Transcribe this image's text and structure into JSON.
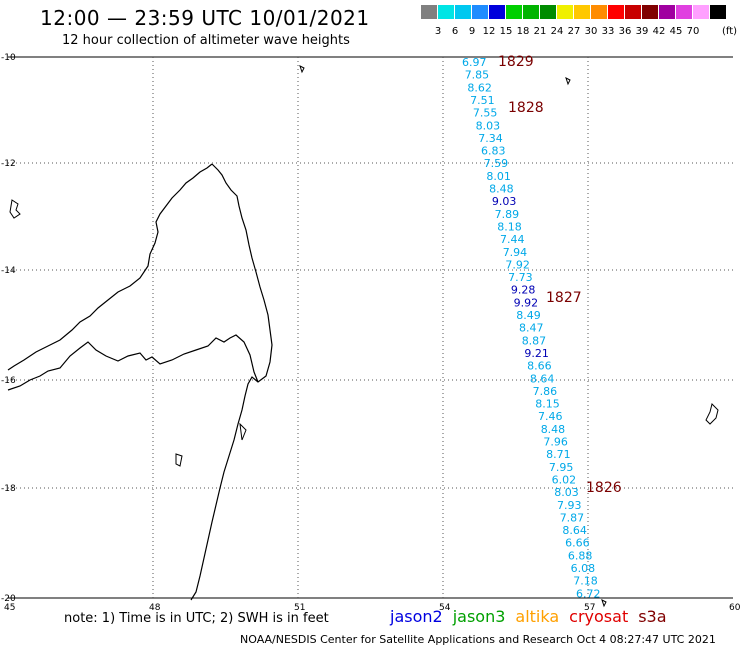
{
  "header": {
    "title": "12:00 — 23:59 UTC 10/01/2021",
    "subtitle": "12 hour collection of altimeter wave heights"
  },
  "legend": {
    "swatches": [
      {
        "label": "",
        "color": "#808080"
      },
      {
        "label": "3",
        "color": "#00e5e5"
      },
      {
        "label": "6",
        "color": "#00c8f0"
      },
      {
        "label": "9",
        "color": "#1e8cff"
      },
      {
        "label": "12",
        "color": "#0000dc"
      },
      {
        "label": "15",
        "color": "#00d000"
      },
      {
        "label": "18",
        "color": "#00b400"
      },
      {
        "label": "21",
        "color": "#008c00"
      },
      {
        "label": "24",
        "color": "#f0f000"
      },
      {
        "label": "27",
        "color": "#ffc800"
      },
      {
        "label": "30",
        "color": "#ff8c00"
      },
      {
        "label": "33",
        "color": "#ff0000"
      },
      {
        "label": "36",
        "color": "#c80000"
      },
      {
        "label": "39",
        "color": "#800000"
      },
      {
        "label": "42",
        "color": "#a000a0"
      },
      {
        "label": "45",
        "color": "#e040e0"
      },
      {
        "label": "70",
        "color": "#ffa0ff"
      },
      {
        "label": "",
        "color": "#000000"
      }
    ],
    "units": "(ft)"
  },
  "axes": {
    "lat_labels": [
      "-10",
      "-12",
      "-14",
      "-16",
      "-18",
      "-20"
    ],
    "lon_labels": [
      "45",
      "48",
      "51",
      "54",
      "57",
      "60"
    ]
  },
  "passes": [
    "1829",
    "1828",
    "1827",
    "1826"
  ],
  "wave_heights": [
    {
      "v": "6.97",
      "c": "#00a8e8"
    },
    {
      "v": "7.85",
      "c": "#00a8e8"
    },
    {
      "v": "8.62",
      "c": "#00a8e8"
    },
    {
      "v": "7.51",
      "c": "#00a8e8"
    },
    {
      "v": "7.55",
      "c": "#00a8e8"
    },
    {
      "v": "8.03",
      "c": "#00a8e8"
    },
    {
      "v": "7.34",
      "c": "#00a8e8"
    },
    {
      "v": "6.83",
      "c": "#00a8e8"
    },
    {
      "v": "7.59",
      "c": "#00a8e8"
    },
    {
      "v": "8.01",
      "c": "#00a8e8"
    },
    {
      "v": "8.48",
      "c": "#00a8e8"
    },
    {
      "v": "9.03",
      "c": "#0000b4"
    },
    {
      "v": "7.89",
      "c": "#00a8e8"
    },
    {
      "v": "8.18",
      "c": "#00a8e8"
    },
    {
      "v": "7.44",
      "c": "#00a8e8"
    },
    {
      "v": "7.94",
      "c": "#00a8e8"
    },
    {
      "v": "7.92",
      "c": "#00a8e8"
    },
    {
      "v": "7.73",
      "c": "#00a8e8"
    },
    {
      "v": "9.28",
      "c": "#0000b4"
    },
    {
      "v": "9.92",
      "c": "#0000b4"
    },
    {
      "v": "8.49",
      "c": "#00a8e8"
    },
    {
      "v": "8.47",
      "c": "#00a8e8"
    },
    {
      "v": "8.87",
      "c": "#00a8e8"
    },
    {
      "v": "9.21",
      "c": "#0000b4"
    },
    {
      "v": "8.66",
      "c": "#00a8e8"
    },
    {
      "v": "8.64",
      "c": "#00a8e8"
    },
    {
      "v": "7.86",
      "c": "#00a8e8"
    },
    {
      "v": "8.15",
      "c": "#00a8e8"
    },
    {
      "v": "7.46",
      "c": "#00a8e8"
    },
    {
      "v": "8.48",
      "c": "#00a8e8"
    },
    {
      "v": "7.96",
      "c": "#00a8e8"
    },
    {
      "v": "8.71",
      "c": "#00a8e8"
    },
    {
      "v": "7.95",
      "c": "#00a8e8"
    },
    {
      "v": "6.02",
      "c": "#00a8e8"
    },
    {
      "v": "8.03",
      "c": "#00a8e8"
    },
    {
      "v": "7.93",
      "c": "#00a8e8"
    },
    {
      "v": "7.87",
      "c": "#00a8e8"
    },
    {
      "v": "8.64",
      "c": "#00a8e8"
    },
    {
      "v": "6.66",
      "c": "#00a8e8"
    },
    {
      "v": "6.88",
      "c": "#00a8e8"
    },
    {
      "v": "6.08",
      "c": "#00a8e8"
    },
    {
      "v": "7.18",
      "c": "#00a8e8"
    },
    {
      "v": "6.72",
      "c": "#00a8e8"
    }
  ],
  "note": "note:  1) Time is in UTC;  2) SWH is in feet",
  "satellites": [
    {
      "name": "jason2",
      "color": "#0000e0"
    },
    {
      "name": "jason3",
      "color": "#00a000"
    },
    {
      "name": "altika",
      "color": "#ffa000"
    },
    {
      "name": "cryosat",
      "color": "#e00000"
    },
    {
      "name": "s3a",
      "color": "#800000"
    }
  ],
  "footer": "NOAA/NESDIS Center for Satellite Applications and Research     Oct  4 08:27:47 UTC 2021"
}
